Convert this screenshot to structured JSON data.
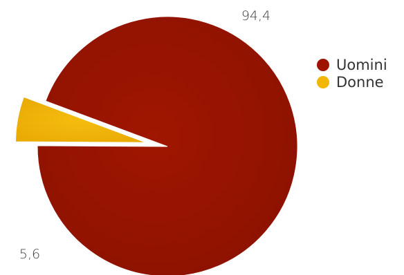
{
  "chart_data": {
    "type": "pie",
    "categories": [
      "Uomini",
      "Donne"
    ],
    "values": [
      94.4,
      5.6
    ],
    "value_labels": [
      "94,4",
      "5,6"
    ],
    "colors": [
      "#9e1400",
      "#f2b705"
    ],
    "exploded_slice": "Donne",
    "legend": {
      "placement": "right",
      "entries": [
        "Uomini",
        "Donne"
      ]
    },
    "title": ""
  }
}
